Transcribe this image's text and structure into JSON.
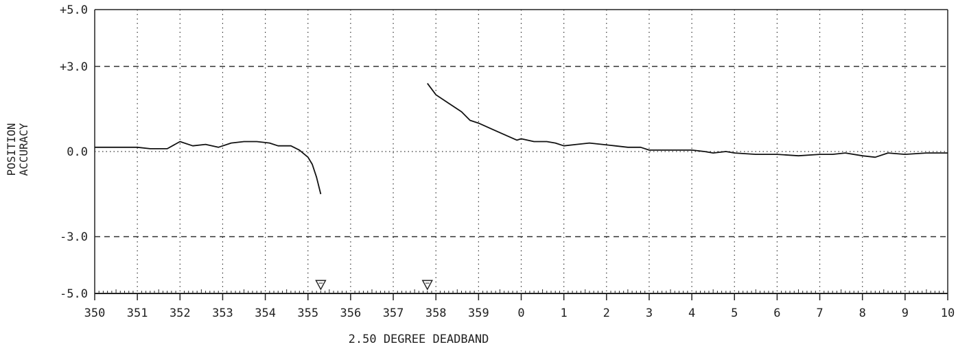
{
  "chart_data": {
    "type": "line",
    "title": "",
    "xlabel": "2.50 DEGREE DEADBAND",
    "ylabel": [
      "POSITION",
      "ACCURACY"
    ],
    "x_tick_labels": [
      "350",
      "351",
      "352",
      "353",
      "354",
      "355",
      "356",
      "357",
      "358",
      "359",
      "0",
      "1",
      "2",
      "3",
      "4",
      "5",
      "6",
      "7",
      "8",
      "9",
      "10"
    ],
    "y_tick_labels": [
      "+5.0",
      "+3.0",
      "0.0",
      "-3.0",
      "-5.0"
    ],
    "y_ticks": [
      5,
      3,
      0,
      -3,
      -5
    ],
    "xlim": [
      350,
      370
    ],
    "ylim": [
      -5,
      5
    ],
    "grid": true,
    "limit_lines": [
      3,
      -3
    ],
    "markers": [
      355.3,
      357.8
    ],
    "series": [
      {
        "segments": [
          [
            [
              350.0,
              0.15
            ],
            [
              350.5,
              0.15
            ],
            [
              351.0,
              0.15
            ],
            [
              351.3,
              0.1
            ],
            [
              351.7,
              0.1
            ],
            [
              352.0,
              0.35
            ],
            [
              352.3,
              0.2
            ],
            [
              352.6,
              0.25
            ],
            [
              352.9,
              0.15
            ],
            [
              353.2,
              0.3
            ],
            [
              353.5,
              0.35
            ],
            [
              353.8,
              0.35
            ],
            [
              354.1,
              0.3
            ],
            [
              354.3,
              0.2
            ],
            [
              354.6,
              0.2
            ],
            [
              354.8,
              0.05
            ],
            [
              355.0,
              -0.2
            ],
            [
              355.1,
              -0.45
            ],
            [
              355.2,
              -0.9
            ],
            [
              355.3,
              -1.5
            ]
          ],
          [
            [
              357.8,
              2.4
            ],
            [
              358.0,
              2.0
            ],
            [
              358.3,
              1.7
            ],
            [
              358.6,
              1.4
            ],
            [
              358.8,
              1.1
            ],
            [
              359.0,
              1.0
            ],
            [
              359.3,
              0.8
            ],
            [
              359.6,
              0.6
            ],
            [
              359.9,
              0.4
            ],
            [
              360.0,
              0.45
            ],
            [
              360.3,
              0.35
            ],
            [
              360.6,
              0.35
            ],
            [
              360.8,
              0.3
            ],
            [
              361.0,
              0.2
            ],
            [
              361.3,
              0.25
            ],
            [
              361.6,
              0.3
            ],
            [
              361.9,
              0.25
            ],
            [
              362.2,
              0.2
            ],
            [
              362.5,
              0.15
            ],
            [
              362.8,
              0.15
            ],
            [
              363.0,
              0.05
            ],
            [
              363.5,
              0.05
            ],
            [
              364.0,
              0.05
            ],
            [
              364.3,
              0.0
            ],
            [
              364.5,
              -0.05
            ],
            [
              364.8,
              0.0
            ],
            [
              365.0,
              -0.05
            ],
            [
              365.5,
              -0.1
            ],
            [
              366.0,
              -0.1
            ],
            [
              366.5,
              -0.15
            ],
            [
              367.0,
              -0.1
            ],
            [
              367.3,
              -0.1
            ],
            [
              367.6,
              -0.05
            ],
            [
              368.0,
              -0.15
            ],
            [
              368.3,
              -0.2
            ],
            [
              368.6,
              -0.05
            ],
            [
              369.0,
              -0.1
            ],
            [
              369.5,
              -0.05
            ],
            [
              370.0,
              -0.05
            ]
          ]
        ]
      }
    ]
  }
}
